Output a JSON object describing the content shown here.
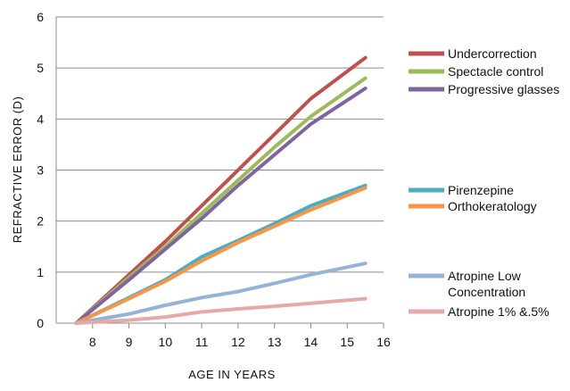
{
  "chart_data": {
    "type": "line",
    "xlabel": "AGE IN YEARS",
    "ylabel": "REFRACTIVE ERROR (D)",
    "xlim": [
      7,
      16
    ],
    "ylim": [
      0,
      6
    ],
    "x_ticks": [
      8,
      9,
      10,
      11,
      12,
      13,
      14,
      15,
      16
    ],
    "y_ticks": [
      0,
      1,
      2,
      3,
      4,
      5,
      6
    ],
    "grid": "horizontal",
    "legend_position": "right",
    "series": [
      {
        "name": "Undercorrection",
        "color": "#c0504d",
        "points": [
          [
            7.55,
            0
          ],
          [
            9,
            0.95
          ],
          [
            10,
            1.6
          ],
          [
            11,
            2.3
          ],
          [
            12,
            3.0
          ],
          [
            13,
            3.7
          ],
          [
            14,
            4.4
          ],
          [
            15.5,
            5.2
          ]
        ]
      },
      {
        "name": "Spectacle control",
        "color": "#9bbb59",
        "points": [
          [
            7.55,
            0
          ],
          [
            9,
            0.9
          ],
          [
            10,
            1.5
          ],
          [
            11,
            2.15
          ],
          [
            12,
            2.8
          ],
          [
            13,
            3.45
          ],
          [
            14,
            4.05
          ],
          [
            15.5,
            4.8
          ]
        ]
      },
      {
        "name": "Progressive glasses",
        "color": "#8064a2",
        "points": [
          [
            7.55,
            0
          ],
          [
            9,
            0.85
          ],
          [
            10,
            1.45
          ],
          [
            11,
            2.05
          ],
          [
            12,
            2.7
          ],
          [
            13,
            3.3
          ],
          [
            14,
            3.9
          ],
          [
            15.5,
            4.6
          ]
        ]
      },
      {
        "name": "Pirenzepine",
        "color": "#4bacc6",
        "points": [
          [
            7.55,
            0
          ],
          [
            9,
            0.5
          ],
          [
            10,
            0.85
          ],
          [
            11,
            1.3
          ],
          [
            12,
            1.62
          ],
          [
            13,
            1.95
          ],
          [
            14,
            2.3
          ],
          [
            15.5,
            2.7
          ]
        ]
      },
      {
        "name": "Orthokeratology",
        "color": "#f79646",
        "points": [
          [
            7.55,
            0
          ],
          [
            9,
            0.48
          ],
          [
            10,
            0.82
          ],
          [
            11,
            1.22
          ],
          [
            12,
            1.58
          ],
          [
            13,
            1.9
          ],
          [
            14,
            2.22
          ],
          [
            15.5,
            2.65
          ]
        ]
      },
      {
        "name": "Atropine Low Concentration",
        "color": "#95b3d7",
        "points": [
          [
            7.55,
            0
          ],
          [
            9,
            0.18
          ],
          [
            10,
            0.35
          ],
          [
            11,
            0.5
          ],
          [
            12,
            0.62
          ],
          [
            13,
            0.78
          ],
          [
            14,
            0.95
          ],
          [
            15.5,
            1.17
          ]
        ]
      },
      {
        "name": "Atropine 1% &.5%",
        "color": "#e6a9a8",
        "points": [
          [
            7.55,
            0
          ],
          [
            9,
            0.06
          ],
          [
            10,
            0.12
          ],
          [
            11,
            0.22
          ],
          [
            12,
            0.28
          ],
          [
            13,
            0.33
          ],
          [
            14,
            0.39
          ],
          [
            15.5,
            0.48
          ]
        ]
      }
    ],
    "legend": [
      {
        "lines": [
          "Undercorrection"
        ],
        "color": "#c0504d"
      },
      {
        "lines": [
          "Spectacle control"
        ],
        "color": "#9bbb59"
      },
      {
        "lines": [
          "Progressive glasses"
        ],
        "color": "#8064a2"
      },
      {
        "lines": [
          "Pirenzepine"
        ],
        "color": "#4bacc6"
      },
      {
        "lines": [
          "Orthokeratology"
        ],
        "color": "#f79646"
      },
      {
        "lines": [
          "Atropine Low",
          "Concentration"
        ],
        "color": "#95b3d7"
      },
      {
        "lines": [
          "Atropine 1% &.5%"
        ],
        "color": "#e6a9a8"
      }
    ]
  }
}
